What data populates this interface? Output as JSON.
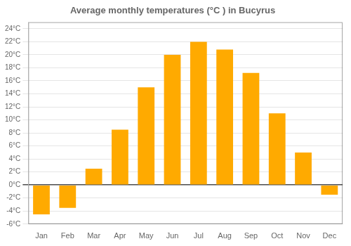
{
  "chart_data": {
    "type": "bar",
    "title": "Average monthly temperatures (°C ) in Bucyrus",
    "categories": [
      "Jan",
      "Feb",
      "Mar",
      "Apr",
      "May",
      "Jun",
      "Jul",
      "Aug",
      "Sep",
      "Oct",
      "Nov",
      "Dec"
    ],
    "values": [
      -4.5,
      -3.5,
      2.5,
      8.5,
      15.0,
      20.0,
      22.0,
      20.8,
      17.2,
      11.0,
      5.0,
      -1.5
    ],
    "color": "#FFAA00",
    "ylim": [
      -6,
      25
    ],
    "yticks": [
      {
        "value": -6,
        "label": "-6°C"
      },
      {
        "value": -4,
        "label": "-4°C"
      },
      {
        "value": -2,
        "label": "-2°C"
      },
      {
        "value": 0,
        "label": "0°C"
      },
      {
        "value": 2,
        "label": "2°C"
      },
      {
        "value": 4,
        "label": "4°C"
      },
      {
        "value": 6,
        "label": "6°C"
      },
      {
        "value": 8,
        "label": "8°C"
      },
      {
        "value": 10,
        "label": "10°C"
      },
      {
        "value": 12,
        "label": "12°C"
      },
      {
        "value": 14,
        "label": "14°C"
      },
      {
        "value": 16,
        "label": "16°C"
      },
      {
        "value": 18,
        "label": "18°C"
      },
      {
        "value": 20,
        "label": "20°C"
      },
      {
        "value": 22,
        "label": "22°C"
      },
      {
        "value": 24,
        "label": "24°C"
      }
    ],
    "grid": true
  }
}
